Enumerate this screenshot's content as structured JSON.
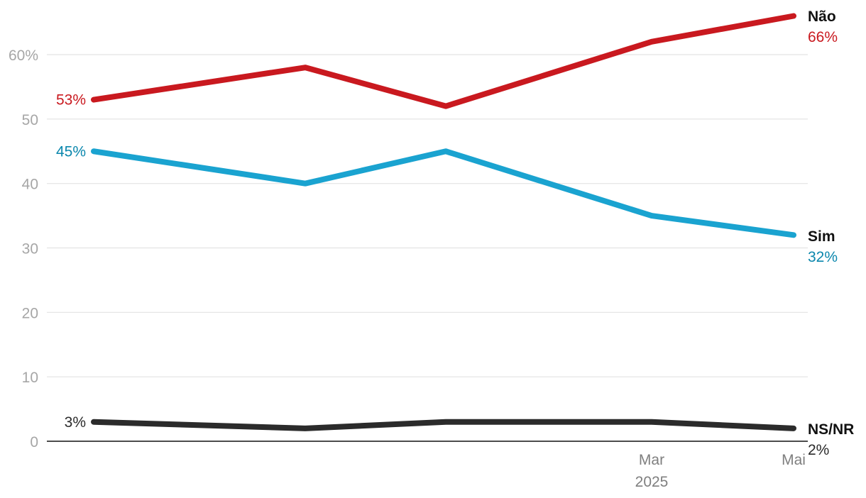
{
  "chart_data": {
    "type": "line",
    "title": "",
    "xlabel": "",
    "ylabel": "",
    "ylim": [
      0,
      66
    ],
    "y_ticks": [
      0,
      10,
      20,
      30,
      40,
      50,
      60
    ],
    "y_tick_labels": [
      "0",
      "10",
      "20",
      "30",
      "40",
      "50",
      "60%"
    ],
    "x_tick_labels": [
      {
        "index": 3,
        "line1": "Mar",
        "line2": "2025"
      },
      {
        "index": 4,
        "line1": "Mai",
        "line2": ""
      }
    ],
    "grid": true,
    "legend": "direct-labels-right",
    "series": [
      {
        "name": "Não",
        "color": "#c9191f",
        "label_color": "#c9191f",
        "values": [
          53,
          58,
          52,
          62,
          66
        ],
        "start_label": "53%",
        "end_label": "66%"
      },
      {
        "name": "Sim",
        "color": "#1aa3d0",
        "label_color": "#0b87ad",
        "values": [
          45,
          40,
          45,
          35,
          32
        ],
        "start_label": "45%",
        "end_label": "32%"
      },
      {
        "name": "NS/NR",
        "color": "#2b2b2b",
        "label_color": "#2b2b2b",
        "values": [
          3,
          2,
          3,
          3,
          2
        ],
        "start_label": "3%",
        "end_label": "2%"
      }
    ]
  }
}
